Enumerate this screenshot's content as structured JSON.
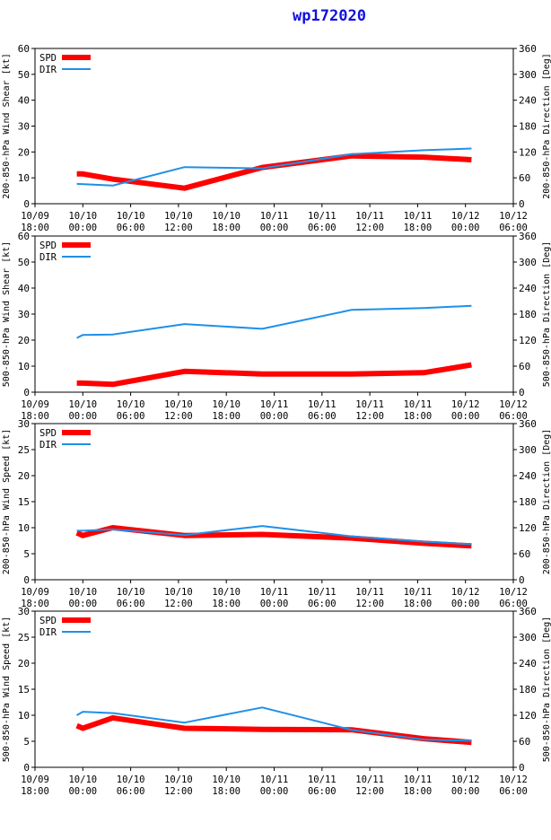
{
  "title": "wp172020",
  "colors": {
    "spd": "#ff0000",
    "dir": "#1e90e8",
    "axis": "#000000"
  },
  "chart_data": [
    {
      "type": "line",
      "ylabel": "200-850-hPa Wind Shear [kt]",
      "y2label": "200-850-hPa Direction [Deg]",
      "ylim": [
        0,
        60
      ],
      "yticks": [
        "0",
        "10",
        "20",
        "30",
        "40",
        "50",
        "60"
      ],
      "y2lim": [
        0,
        360
      ],
      "y2ticks": [
        "0",
        "60",
        "120",
        "180",
        "240",
        "300",
        "360"
      ],
      "legend": [
        "SPD",
        "DIR"
      ],
      "series": [
        {
          "name": "SPD",
          "axis": "left",
          "x": [
            -0.3,
            -0.2,
            0.3,
            1.5,
            2.8,
            4.3,
            5.5,
            6.3
          ],
          "y": [
            11.5,
            11.5,
            9.5,
            6,
            14,
            18.5,
            18,
            17
          ]
        },
        {
          "name": "DIR",
          "axis": "right",
          "x": [
            -0.3,
            0.3,
            1.5,
            2.8,
            4.3,
            5.5,
            6.3
          ],
          "y": [
            46,
            42,
            85,
            82,
            115,
            124,
            128
          ]
        }
      ]
    },
    {
      "type": "line",
      "ylabel": "500-850-hPa Wind Shear [kt]",
      "y2label": "500-850-hPa Direction [Deg]",
      "ylim": [
        0,
        60
      ],
      "yticks": [
        "0",
        "10",
        "20",
        "30",
        "40",
        "50",
        "60"
      ],
      "y2lim": [
        0,
        360
      ],
      "y2ticks": [
        "0",
        "60",
        "120",
        "180",
        "240",
        "300",
        "360"
      ],
      "legend": [
        "SPD",
        "DIR"
      ],
      "series": [
        {
          "name": "SPD",
          "axis": "left",
          "x": [
            -0.3,
            -0.2,
            0.3,
            1.5,
            2.8,
            4.3,
            5.5,
            6.3
          ],
          "y": [
            3.5,
            3.5,
            3,
            8,
            7,
            7,
            7.5,
            10.5
          ]
        },
        {
          "name": "DIR",
          "axis": "right",
          "x": [
            -0.3,
            -0.2,
            0.3,
            1.5,
            2.8,
            4.3,
            5.5,
            6.3
          ],
          "y": [
            125,
            132,
            133,
            157,
            146,
            190,
            194,
            199
          ]
        }
      ]
    },
    {
      "type": "line",
      "ylabel": "200-850-hPa Wind Speed [kt]",
      "y2label": "200-850-hPa Direction [Deg]",
      "ylim": [
        0,
        30
      ],
      "yticks": [
        "0",
        "5",
        "10",
        "15",
        "20",
        "25",
        "30"
      ],
      "y2lim": [
        0,
        360
      ],
      "y2ticks": [
        "0",
        "60",
        "120",
        "180",
        "240",
        "300",
        "360"
      ],
      "legend": [
        "SPD",
        "DIR"
      ],
      "series": [
        {
          "name": "SPD",
          "axis": "left",
          "x": [
            -0.3,
            -0.2,
            0.3,
            1.5,
            2.8,
            4.3,
            5.5,
            6.3
          ],
          "y": [
            9,
            8.5,
            10,
            8.5,
            8.7,
            8,
            7,
            6.5
          ]
        },
        {
          "name": "DIR",
          "axis": "right",
          "x": [
            -0.3,
            -0.2,
            0.3,
            1.5,
            2.8,
            4.3,
            5.5,
            6.3
          ],
          "y": [
            113,
            113,
            116,
            103,
            124,
            100,
            88,
            82
          ]
        }
      ]
    },
    {
      "type": "line",
      "ylabel": "500-850-hPa Wind Speed [kt]",
      "y2label": "500-850-hPa Direction [Deg]",
      "ylim": [
        0,
        30
      ],
      "yticks": [
        "0",
        "5",
        "10",
        "15",
        "20",
        "25",
        "30"
      ],
      "y2lim": [
        0,
        360
      ],
      "y2ticks": [
        "0",
        "60",
        "120",
        "180",
        "240",
        "300",
        "360"
      ],
      "legend": [
        "SPD",
        "DIR"
      ],
      "series": [
        {
          "name": "SPD",
          "axis": "left",
          "x": [
            -0.3,
            -0.2,
            0.3,
            1.5,
            2.8,
            4.3,
            5.5,
            6.3
          ],
          "y": [
            8,
            7.5,
            9.5,
            7.5,
            7.3,
            7.2,
            5.5,
            4.8
          ]
        },
        {
          "name": "DIR",
          "axis": "right",
          "x": [
            -0.3,
            -0.2,
            0.3,
            1.5,
            2.8,
            4.3,
            5.5,
            6.3
          ],
          "y": [
            120,
            128,
            125,
            103,
            138,
            86,
            64,
            61
          ]
        }
      ]
    }
  ],
  "xaxis": {
    "xlim": [
      -1,
      7
    ],
    "ticks": [
      {
        "date": "10/09",
        "time": "18:00"
      },
      {
        "date": "10/10",
        "time": "00:00"
      },
      {
        "date": "10/10",
        "time": "06:00"
      },
      {
        "date": "10/10",
        "time": "12:00"
      },
      {
        "date": "10/10",
        "time": "18:00"
      },
      {
        "date": "10/11",
        "time": "00:00"
      },
      {
        "date": "10/11",
        "time": "06:00"
      },
      {
        "date": "10/11",
        "time": "12:00"
      },
      {
        "date": "10/11",
        "time": "18:00"
      },
      {
        "date": "10/12",
        "time": "00:00"
      },
      {
        "date": "10/12",
        "time": "06:00"
      }
    ]
  }
}
